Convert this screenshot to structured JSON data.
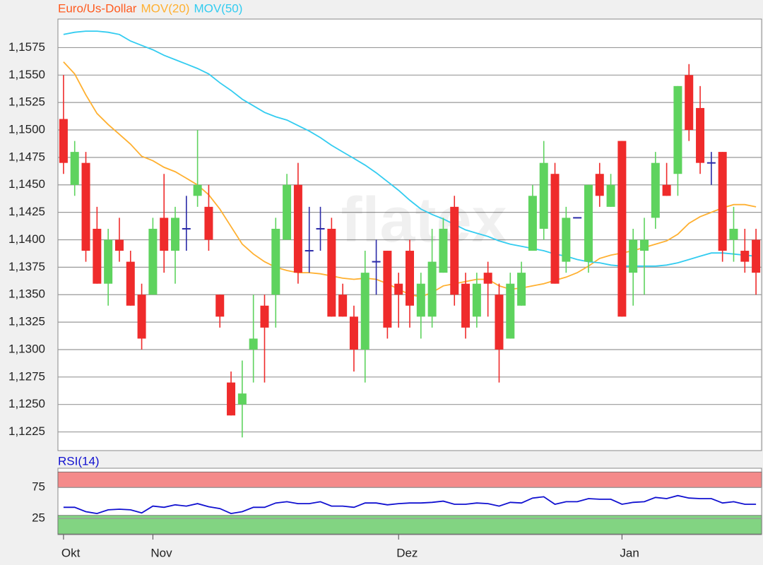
{
  "chart_data": [
    {
      "type": "candlestick",
      "name": "Euro/Us-Dollar",
      "color": "#ff5a1e",
      "up_color": "#5ed35e",
      "down_color": "#ef2b2b",
      "doji_color": "#2a2aa8",
      "watermark": "flatex",
      "categories": [
        "Okt",
        null,
        null,
        null,
        null,
        null,
        null,
        null,
        "Nov",
        null,
        null,
        null,
        null,
        null,
        null,
        null,
        null,
        null,
        null,
        null,
        null,
        null,
        null,
        null,
        null,
        null,
        null,
        null,
        null,
        null,
        "Dez",
        null,
        null,
        null,
        null,
        null,
        null,
        null,
        null,
        null,
        null,
        null,
        null,
        null,
        null,
        null,
        null,
        null,
        null,
        null,
        "Jan",
        null,
        null,
        null,
        null,
        null,
        null,
        null,
        null,
        null,
        null,
        null,
        null
      ],
      "open": [
        1.151,
        1.145,
        1.147,
        1.141,
        1.136,
        1.14,
        1.138,
        1.135,
        1.135,
        1.142,
        1.139,
        1.141,
        1.144,
        1.143,
        1.135,
        1.127,
        1.125,
        1.13,
        1.134,
        1.135,
        1.14,
        1.145,
        1.139,
        1.141,
        1.141,
        1.135,
        1.133,
        1.13,
        1.138,
        1.139,
        1.136,
        1.139,
        1.133,
        1.133,
        1.137,
        1.143,
        1.136,
        1.133,
        1.137,
        1.135,
        1.131,
        1.134,
        1.139,
        1.141,
        1.146,
        1.138,
        1.142,
        1.138,
        1.146,
        1.143,
        1.149,
        1.137,
        1.139,
        1.142,
        1.145,
        1.146,
        1.155,
        1.152,
        1.147,
        1.148,
        1.14,
        1.139,
        1.14
      ],
      "high": [
        1.155,
        1.149,
        1.148,
        1.143,
        1.141,
        1.142,
        1.139,
        1.136,
        1.142,
        1.146,
        1.143,
        1.144,
        1.15,
        1.145,
        1.135,
        1.128,
        1.129,
        1.135,
        1.135,
        1.142,
        1.146,
        1.147,
        1.143,
        1.143,
        1.142,
        1.136,
        1.134,
        1.139,
        1.14,
        1.139,
        1.137,
        1.14,
        1.137,
        1.141,
        1.142,
        1.144,
        1.137,
        1.137,
        1.138,
        1.136,
        1.137,
        1.138,
        1.145,
        1.149,
        1.147,
        1.143,
        1.142,
        1.145,
        1.147,
        1.146,
        1.149,
        1.141,
        1.142,
        1.148,
        1.147,
        1.154,
        1.156,
        1.154,
        1.148,
        1.148,
        1.143,
        1.141,
        1.141
      ],
      "low": [
        1.146,
        1.144,
        1.138,
        1.136,
        1.134,
        1.138,
        1.134,
        1.13,
        1.135,
        1.137,
        1.136,
        1.139,
        1.143,
        1.139,
        1.132,
        1.124,
        1.122,
        1.127,
        1.127,
        1.132,
        1.14,
        1.136,
        1.137,
        1.139,
        1.133,
        1.133,
        1.128,
        1.127,
        1.135,
        1.131,
        1.132,
        1.132,
        1.131,
        1.132,
        1.137,
        1.134,
        1.131,
        1.132,
        1.133,
        1.127,
        1.131,
        1.134,
        1.139,
        1.14,
        1.136,
        1.137,
        1.142,
        1.137,
        1.143,
        1.143,
        1.133,
        1.134,
        1.135,
        1.141,
        1.144,
        1.144,
        1.149,
        1.146,
        1.145,
        1.138,
        1.138,
        1.137,
        1.135
      ],
      "close": [
        1.147,
        1.148,
        1.139,
        1.136,
        1.14,
        1.139,
        1.134,
        1.131,
        1.141,
        1.139,
        1.142,
        1.141,
        1.145,
        1.14,
        1.133,
        1.124,
        1.126,
        1.131,
        1.132,
        1.141,
        1.145,
        1.137,
        1.139,
        1.141,
        1.133,
        1.133,
        1.13,
        1.137,
        1.138,
        1.132,
        1.135,
        1.134,
        1.136,
        1.138,
        1.141,
        1.135,
        1.132,
        1.136,
        1.136,
        1.13,
        1.136,
        1.137,
        1.144,
        1.147,
        1.136,
        1.142,
        1.142,
        1.145,
        1.144,
        1.145,
        1.133,
        1.14,
        1.14,
        1.147,
        1.144,
        1.154,
        1.15,
        1.147,
        1.147,
        1.139,
        1.141,
        1.138,
        1.137
      ],
      "lines": [
        {
          "name": "MOV(20)",
          "color": "#ffb030",
          "values": [
            1.1562,
            1.1551,
            1.1532,
            1.1515,
            1.1505,
            1.1496,
            1.1487,
            1.1476,
            1.1472,
            1.1466,
            1.1462,
            1.1456,
            1.145,
            1.1441,
            1.1428,
            1.1412,
            1.1396,
            1.1387,
            1.138,
            1.1375,
            1.1372,
            1.137,
            1.137,
            1.1369,
            1.1367,
            1.1365,
            1.1364,
            1.1365,
            1.1364,
            1.136,
            1.1355,
            1.135,
            1.1348,
            1.1352,
            1.1358,
            1.136,
            1.1362,
            1.1364,
            1.1364,
            1.1358,
            1.1355,
            1.1356,
            1.1358,
            1.136,
            1.1363,
            1.1366,
            1.137,
            1.1376,
            1.1383,
            1.1386,
            1.1388,
            1.139,
            1.1393,
            1.1396,
            1.1399,
            1.1405,
            1.1415,
            1.1421,
            1.1425,
            1.1429,
            1.1432,
            1.1432,
            1.143
          ]
        },
        {
          "name": "MOV(50)",
          "color": "#33ccf0",
          "values": [
            1.1587,
            1.1589,
            1.159,
            1.159,
            1.1589,
            1.1587,
            1.1581,
            1.1577,
            1.1573,
            1.1568,
            1.1564,
            1.156,
            1.1556,
            1.1551,
            1.1543,
            1.1536,
            1.1528,
            1.1522,
            1.1516,
            1.1512,
            1.1509,
            1.1504,
            1.1499,
            1.1493,
            1.1486,
            1.148,
            1.1474,
            1.1468,
            1.1461,
            1.1453,
            1.1445,
            1.1436,
            1.1428,
            1.1423,
            1.1419,
            1.1414,
            1.1409,
            1.1406,
            1.1403,
            1.1399,
            1.1396,
            1.1394,
            1.1392,
            1.139,
            1.1387,
            1.1385,
            1.1382,
            1.138,
            1.1379,
            1.1377,
            1.1376,
            1.1376,
            1.1376,
            1.1376,
            1.1377,
            1.1379,
            1.1382,
            1.1385,
            1.1388,
            1.1388,
            1.1387,
            1.1386,
            1.1385
          ]
        }
      ],
      "ylim": [
        1.1208,
        1.1601
      ],
      "yticks": [
        {
          "value": 1.1225,
          "label": "1,1225"
        },
        {
          "value": 1.125,
          "label": "1,1250"
        },
        {
          "value": 1.1275,
          "label": "1,1275"
        },
        {
          "value": 1.13,
          "label": "1,1300"
        },
        {
          "value": 1.1325,
          "label": "1,1325"
        },
        {
          "value": 1.135,
          "label": "1,1350"
        },
        {
          "value": 1.1375,
          "label": "1,1375"
        },
        {
          "value": 1.14,
          "label": "1,1400"
        },
        {
          "value": 1.1425,
          "label": "1,1425"
        },
        {
          "value": 1.145,
          "label": "1,1450"
        },
        {
          "value": 1.1475,
          "label": "1,1475"
        },
        {
          "value": 1.15,
          "label": "1,1500"
        },
        {
          "value": 1.1525,
          "label": "1,1525"
        },
        {
          "value": 1.155,
          "label": "1,1550"
        },
        {
          "value": 1.1575,
          "label": "1,1575"
        }
      ],
      "grid": true
    },
    {
      "type": "line",
      "series": [
        {
          "name": "RSI(14)",
          "color": "#1010d0",
          "values": [
            43,
            43,
            36,
            33,
            39,
            40,
            39,
            34,
            45,
            43,
            47,
            45,
            49,
            44,
            41,
            33,
            36,
            43,
            43,
            50,
            52,
            49,
            49,
            52,
            45,
            45,
            43,
            50,
            50,
            47,
            49,
            50,
            50,
            51,
            53,
            48,
            48,
            50,
            49,
            45,
            51,
            50,
            58,
            60,
            48,
            52,
            52,
            57,
            56,
            56,
            48,
            51,
            52,
            59,
            57,
            62,
            58,
            57,
            57,
            50,
            52,
            48,
            48
          ]
        }
      ],
      "zones": [
        {
          "from": 75,
          "to": 100,
          "color": "#f48a8a"
        },
        {
          "from": 0,
          "to": 30,
          "color": "#82d482"
        }
      ],
      "ylim": [
        -1,
        106
      ],
      "yticks": [
        25,
        75
      ],
      "grid": true
    }
  ]
}
